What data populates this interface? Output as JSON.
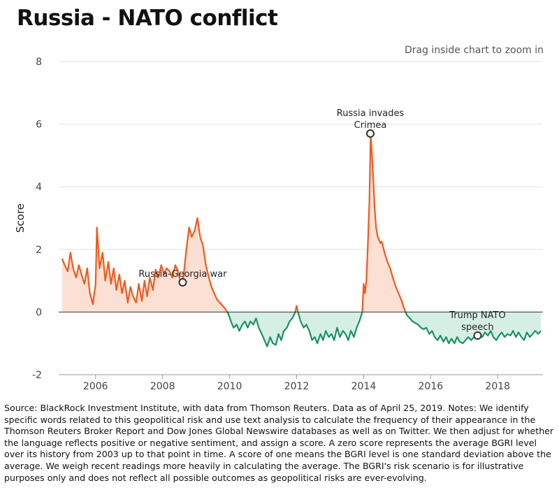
{
  "title": "Russia - NATO conflict",
  "zoom_hint": "Drag inside chart to zoom in",
  "notes": "Source: BlackRock Investment Institute, with data from Thomson Reuters. Data as of April 25, 2019. Notes: We identify specific words related to this geopolitical risk and use text analysis to calculate the frequency of their appearance in the Thomson Reuters Broker Report and Dow Jones Global Newswire databases as well as on Twitter. We then adjust for whether the language reflects positive or negative sentiment, and assign a score. A zero score represents the average BGRI level over its history from 2003 up to that point in time. A score of one means the BGRI level is one standard deviation above the average. We weigh recent readings more heavily in calculating the average. The BGRI's risk scenario is for illustrative purposes only and does not reflect all possible outcomes as geopolitical risks are ever-evolving.",
  "colors": {
    "positive": "#f05a1e",
    "positive_fill": "#fde0d4",
    "negative": "#1a9160",
    "negative_fill": "#d6efe5"
  },
  "chart_data": {
    "type": "area",
    "title": "",
    "xlabel": "",
    "ylabel": "Score",
    "xlim": [
      2004.9,
      2019.35
    ],
    "ylim": [
      -2,
      8
    ],
    "x_ticks": [
      2006,
      2008,
      2010,
      2012,
      2014,
      2016,
      2018
    ],
    "y_ticks": [
      -2,
      0,
      2,
      4,
      6,
      8
    ],
    "grid": "horizontal",
    "series": [
      {
        "points": [
          [
            2005.0,
            1.7
          ],
          [
            2005.08,
            1.5
          ],
          [
            2005.17,
            1.3
          ],
          [
            2005.25,
            1.9
          ],
          [
            2005.33,
            1.4
          ],
          [
            2005.42,
            1.1
          ],
          [
            2005.5,
            1.5
          ],
          [
            2005.58,
            1.2
          ],
          [
            2005.67,
            0.9
          ],
          [
            2005.75,
            1.4
          ],
          [
            2005.83,
            0.6
          ],
          [
            2005.92,
            0.25
          ],
          [
            2006.0,
            0.9
          ],
          [
            2006.04,
            2.7
          ],
          [
            2006.12,
            1.4
          ],
          [
            2006.21,
            1.9
          ],
          [
            2006.29,
            1.0
          ],
          [
            2006.38,
            1.6
          ],
          [
            2006.46,
            0.9
          ],
          [
            2006.54,
            1.4
          ],
          [
            2006.62,
            0.7
          ],
          [
            2006.71,
            1.2
          ],
          [
            2006.79,
            0.6
          ],
          [
            2006.87,
            1.0
          ],
          [
            2006.96,
            0.3
          ],
          [
            2007.04,
            0.8
          ],
          [
            2007.12,
            0.5
          ],
          [
            2007.21,
            0.3
          ],
          [
            2007.29,
            0.9
          ],
          [
            2007.38,
            0.35
          ],
          [
            2007.46,
            1.0
          ],
          [
            2007.54,
            0.5
          ],
          [
            2007.62,
            1.1
          ],
          [
            2007.71,
            0.7
          ],
          [
            2007.79,
            1.35
          ],
          [
            2007.87,
            1.1
          ],
          [
            2007.96,
            1.5
          ],
          [
            2008.04,
            1.2
          ],
          [
            2008.12,
            1.4
          ],
          [
            2008.21,
            1.3
          ],
          [
            2008.29,
            1.1
          ],
          [
            2008.38,
            1.5
          ],
          [
            2008.46,
            1.3
          ],
          [
            2008.54,
            0.95
          ],
          [
            2008.62,
            1.1
          ],
          [
            2008.71,
            2.0
          ],
          [
            2008.79,
            2.7
          ],
          [
            2008.87,
            2.4
          ],
          [
            2008.96,
            2.6
          ],
          [
            2009.04,
            3.0
          ],
          [
            2009.12,
            2.4
          ],
          [
            2009.21,
            2.1
          ],
          [
            2009.29,
            1.5
          ],
          [
            2009.38,
            1.1
          ],
          [
            2009.46,
            0.8
          ],
          [
            2009.54,
            0.6
          ],
          [
            2009.62,
            0.4
          ],
          [
            2009.71,
            0.3
          ],
          [
            2009.79,
            0.2
          ],
          [
            2009.87,
            0.1
          ],
          [
            2009.96,
            -0.05
          ],
          [
            2010.04,
            -0.3
          ],
          [
            2010.12,
            -0.5
          ],
          [
            2010.21,
            -0.4
          ],
          [
            2010.29,
            -0.6
          ],
          [
            2010.38,
            -0.4
          ],
          [
            2010.46,
            -0.3
          ],
          [
            2010.54,
            -0.5
          ],
          [
            2010.62,
            -0.3
          ],
          [
            2010.71,
            -0.4
          ],
          [
            2010.79,
            -0.2
          ],
          [
            2010.87,
            -0.5
          ],
          [
            2010.96,
            -0.7
          ],
          [
            2011.04,
            -0.9
          ],
          [
            2011.12,
            -1.1
          ],
          [
            2011.21,
            -0.8
          ],
          [
            2011.29,
            -1.0
          ],
          [
            2011.38,
            -1.05
          ],
          [
            2011.46,
            -0.7
          ],
          [
            2011.54,
            -0.9
          ],
          [
            2011.62,
            -0.6
          ],
          [
            2011.71,
            -0.5
          ],
          [
            2011.79,
            -0.3
          ],
          [
            2011.87,
            -0.2
          ],
          [
            2011.96,
            0.0
          ],
          [
            2012.0,
            0.2
          ],
          [
            2012.04,
            0.0
          ],
          [
            2012.12,
            -0.3
          ],
          [
            2012.21,
            -0.5
          ],
          [
            2012.29,
            -0.4
          ],
          [
            2012.38,
            -0.6
          ],
          [
            2012.46,
            -0.9
          ],
          [
            2012.54,
            -0.8
          ],
          [
            2012.62,
            -1.0
          ],
          [
            2012.71,
            -0.7
          ],
          [
            2012.79,
            -0.9
          ],
          [
            2012.87,
            -0.6
          ],
          [
            2012.96,
            -0.8
          ],
          [
            2013.04,
            -0.7
          ],
          [
            2013.12,
            -0.9
          ],
          [
            2013.21,
            -0.5
          ],
          [
            2013.29,
            -0.8
          ],
          [
            2013.38,
            -0.6
          ],
          [
            2013.46,
            -0.7
          ],
          [
            2013.54,
            -0.9
          ],
          [
            2013.62,
            -0.6
          ],
          [
            2013.71,
            -0.8
          ],
          [
            2013.79,
            -0.5
          ],
          [
            2013.87,
            -0.3
          ],
          [
            2013.96,
            0.0
          ],
          [
            2014.0,
            0.9
          ],
          [
            2014.04,
            0.6
          ],
          [
            2014.08,
            1.0
          ],
          [
            2014.12,
            2.0
          ],
          [
            2014.17,
            3.5
          ],
          [
            2014.21,
            5.7
          ],
          [
            2014.25,
            5.0
          ],
          [
            2014.29,
            4.2
          ],
          [
            2014.33,
            3.3
          ],
          [
            2014.37,
            2.7
          ],
          [
            2014.42,
            2.4
          ],
          [
            2014.5,
            2.2
          ],
          [
            2014.54,
            2.25
          ],
          [
            2014.62,
            1.9
          ],
          [
            2014.71,
            1.6
          ],
          [
            2014.79,
            1.4
          ],
          [
            2014.87,
            1.1
          ],
          [
            2014.96,
            0.8
          ],
          [
            2015.04,
            0.6
          ],
          [
            2015.12,
            0.4
          ],
          [
            2015.21,
            0.1
          ],
          [
            2015.29,
            -0.1
          ],
          [
            2015.38,
            -0.2
          ],
          [
            2015.46,
            -0.3
          ],
          [
            2015.54,
            -0.35
          ],
          [
            2015.62,
            -0.4
          ],
          [
            2015.71,
            -0.5
          ],
          [
            2015.79,
            -0.55
          ],
          [
            2015.87,
            -0.5
          ],
          [
            2015.96,
            -0.7
          ],
          [
            2016.04,
            -0.6
          ],
          [
            2016.12,
            -0.8
          ],
          [
            2016.21,
            -0.9
          ],
          [
            2016.29,
            -0.75
          ],
          [
            2016.38,
            -0.95
          ],
          [
            2016.46,
            -0.8
          ],
          [
            2016.54,
            -1.0
          ],
          [
            2016.62,
            -0.85
          ],
          [
            2016.71,
            -1.0
          ],
          [
            2016.79,
            -0.8
          ],
          [
            2016.87,
            -0.95
          ],
          [
            2016.96,
            -1.0
          ],
          [
            2017.04,
            -0.9
          ],
          [
            2017.12,
            -0.8
          ],
          [
            2017.21,
            -0.9
          ],
          [
            2017.29,
            -0.8
          ],
          [
            2017.38,
            -0.85
          ],
          [
            2017.46,
            -0.7
          ],
          [
            2017.54,
            -0.8
          ],
          [
            2017.62,
            -0.65
          ],
          [
            2017.71,
            -0.75
          ],
          [
            2017.79,
            -0.6
          ],
          [
            2017.87,
            -0.8
          ],
          [
            2017.96,
            -0.9
          ],
          [
            2018.04,
            -0.75
          ],
          [
            2018.12,
            -0.65
          ],
          [
            2018.21,
            -0.8
          ],
          [
            2018.29,
            -0.7
          ],
          [
            2018.38,
            -0.75
          ],
          [
            2018.46,
            -0.6
          ],
          [
            2018.54,
            -0.8
          ],
          [
            2018.62,
            -0.65
          ],
          [
            2018.71,
            -0.8
          ],
          [
            2018.79,
            -0.9
          ],
          [
            2018.87,
            -0.65
          ],
          [
            2018.96,
            -0.8
          ],
          [
            2019.04,
            -0.7
          ],
          [
            2019.12,
            -0.6
          ],
          [
            2019.21,
            -0.7
          ],
          [
            2019.29,
            -0.6
          ]
        ]
      }
    ],
    "annotations": [
      {
        "lines": [
          "Russia-Georgia war"
        ],
        "x": 2008.6,
        "y": 0.95
      },
      {
        "lines": [
          "Russia invades",
          "Crimea"
        ],
        "x": 2014.2,
        "y": 5.7
      },
      {
        "lines": [
          "Trump NATO",
          "speech"
        ],
        "x": 2017.4,
        "y": -0.75
      }
    ]
  }
}
